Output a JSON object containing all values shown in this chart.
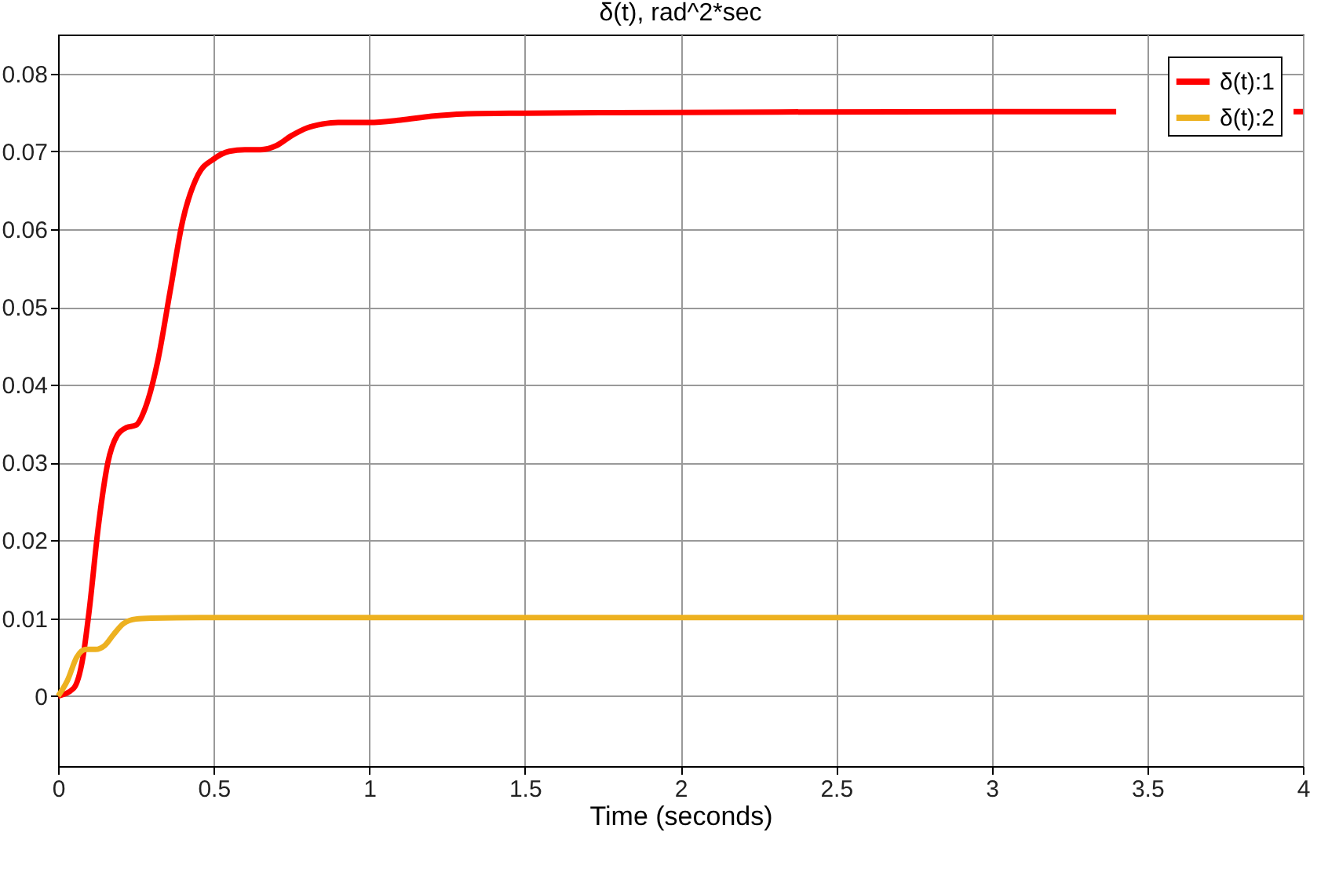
{
  "chart_data": {
    "type": "line",
    "title": "δ(t), rad^2*sec",
    "xlabel": "Time (seconds)",
    "xlim": [
      0,
      4
    ],
    "xticks": [
      0,
      0.5,
      1,
      1.5,
      2,
      2.5,
      3,
      3.5,
      4
    ],
    "ylim": [
      -0.009,
      0.085
    ],
    "yticks": [
      0,
      0.01,
      0.02,
      0.03,
      0.04,
      0.05,
      0.06,
      0.07,
      0.08
    ],
    "grid": true,
    "legend": "top right",
    "marker": "none",
    "line_style": "solid",
    "series": [
      {
        "name": "δ(t):1",
        "color": "#ff0000",
        "x": [
          0,
          0.05,
          0.08,
          0.1,
          0.13,
          0.16,
          0.19,
          0.22,
          0.25,
          0.28,
          0.32,
          0.36,
          0.4,
          0.45,
          0.5,
          0.55,
          0.6,
          0.65,
          0.7,
          0.75,
          0.8,
          0.85,
          0.9,
          1,
          1.1,
          1.2,
          1.3,
          1.5,
          2,
          3,
          3.4,
          3.5,
          3.97,
          4
        ],
        "values": [
          0,
          0.001,
          0.005,
          0.011,
          0.022,
          0.03,
          0.0335,
          0.0345,
          0.0348,
          0.037,
          0.043,
          0.052,
          0.061,
          0.067,
          0.069,
          0.07,
          0.0702,
          0.0702,
          0.0707,
          0.072,
          0.073,
          0.0735,
          0.0737,
          0.0737,
          0.074,
          0.0745,
          0.0748,
          0.0749,
          0.075,
          0.0751,
          0.0751,
          null,
          0.0751,
          0.0751
        ]
      },
      {
        "name": "δ(t):2",
        "color": "#edb120",
        "x": [
          0,
          0.03,
          0.06,
          0.09,
          0.12,
          0.15,
          0.18,
          0.21,
          0.25,
          0.3,
          0.5,
          4
        ],
        "values": [
          0,
          0.002,
          0.005,
          0.006,
          0.006,
          0.0065,
          0.008,
          0.0093,
          0.0099,
          0.01,
          0.0101,
          0.0101
        ]
      }
    ]
  }
}
